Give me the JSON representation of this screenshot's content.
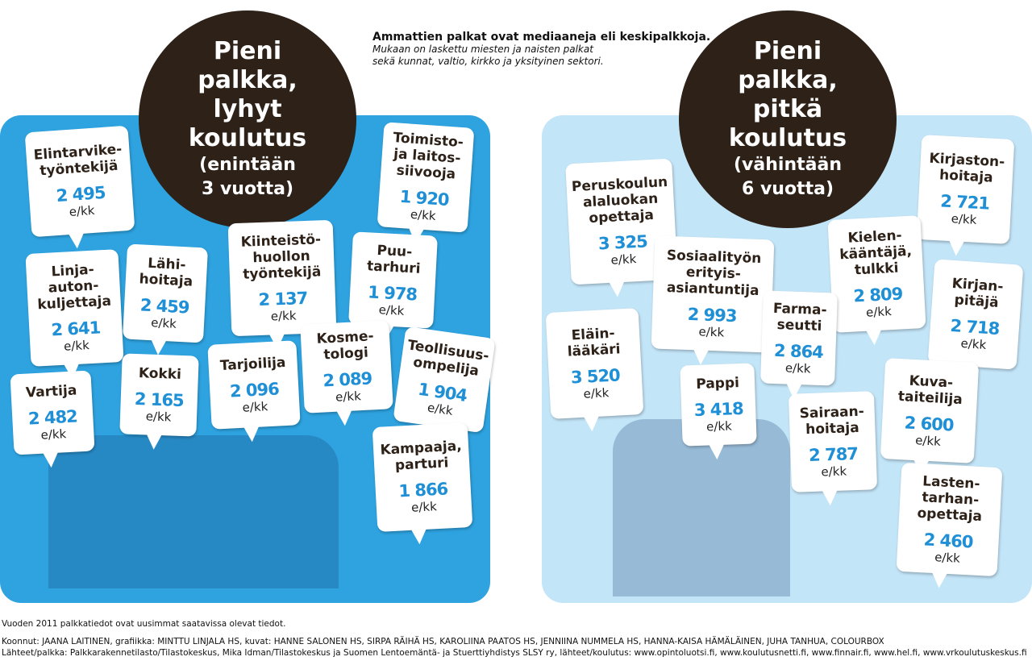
{
  "header": {
    "title": "Ammattien palkat ovat mediaaneja eli keskipalkkoja.",
    "note": [
      "Mukaan on laskettu miesten ja naisten palkat",
      "sekä kunnat, valtio, kirkko ja yksityinen sektori."
    ]
  },
  "left": {
    "heading": [
      "Pieni",
      "palkka,",
      "lyhyt",
      "koulutus"
    ],
    "subheading": [
      "(enintään",
      "3 vuotta)"
    ],
    "bubbles": [
      {
        "name": [
          "Elintarvike-",
          "työntekijä"
        ],
        "salary": "2 495",
        "unit": "e/kk"
      },
      {
        "name": [
          "Toimisto-",
          "ja laitos-",
          "siivooja"
        ],
        "salary": "1 920",
        "unit": "e/kk"
      },
      {
        "name": [
          "Linja-",
          "auton-",
          "kuljettaja"
        ],
        "salary": "2 641",
        "unit": "e/kk"
      },
      {
        "name": [
          "Lähi-",
          "hoitaja"
        ],
        "salary": "2 459",
        "unit": "e/kk"
      },
      {
        "name": [
          "Kiinteistö-",
          "huollon",
          "työntekijä"
        ],
        "salary": "2 137",
        "unit": "e/kk"
      },
      {
        "name": [
          "Puu-",
          "tarhuri"
        ],
        "salary": "1 978",
        "unit": "e/kk"
      },
      {
        "name": [
          "Kosme-",
          "tologi"
        ],
        "salary": "2 089",
        "unit": "e/kk"
      },
      {
        "name": [
          "Teollisuus-",
          "ompelija"
        ],
        "salary": "1 904",
        "unit": "e/kk"
      },
      {
        "name": [
          "Vartija"
        ],
        "salary": "2 482",
        "unit": "e/kk"
      },
      {
        "name": [
          "Kokki"
        ],
        "salary": "2 165",
        "unit": "e/kk"
      },
      {
        "name": [
          "Tarjoilija"
        ],
        "salary": "2 096",
        "unit": "e/kk"
      },
      {
        "name": [
          "Kampaaja,",
          "parturi"
        ],
        "salary": "1 866",
        "unit": "e/kk"
      }
    ]
  },
  "right": {
    "heading": [
      "Pieni",
      "palkka,",
      "pitkä",
      "koulutus"
    ],
    "subheading": [
      "(vähintään",
      "6 vuotta)"
    ],
    "bubbles": [
      {
        "name": [
          "Peruskoulun",
          "alaluokan",
          "opettaja"
        ],
        "salary": "3 325",
        "unit": "e/kk"
      },
      {
        "name": [
          "Kirjaston-",
          "hoitaja"
        ],
        "salary": "2 721",
        "unit": "e/kk"
      },
      {
        "name": [
          "Sosiaalityön",
          "erityis-",
          "asiantuntija"
        ],
        "salary": "2 993",
        "unit": "e/kk"
      },
      {
        "name": [
          "Kielen-",
          "kääntäjä,",
          "tulkki"
        ],
        "salary": "2 809",
        "unit": "e/kk"
      },
      {
        "name": [
          "Kirjan-",
          "pitäjä"
        ],
        "salary": "2 718",
        "unit": "e/kk"
      },
      {
        "name": [
          "Eläin-",
          "lääkäri"
        ],
        "salary": "3 520",
        "unit": "e/kk"
      },
      {
        "name": [
          "Farma-",
          "seutti"
        ],
        "salary": "2 864",
        "unit": "e/kk"
      },
      {
        "name": [
          "Pappi"
        ],
        "salary": "3 418",
        "unit": "e/kk"
      },
      {
        "name": [
          "Kuva-",
          "taiteilija"
        ],
        "salary": "2 600",
        "unit": "e/kk"
      },
      {
        "name": [
          "Sairaan-",
          "hoitaja"
        ],
        "salary": "2 787",
        "unit": "e/kk"
      },
      {
        "name": [
          "Lasten-",
          "tarhan-",
          "opettaja"
        ],
        "salary": "2 460",
        "unit": "e/kk"
      }
    ]
  },
  "footer": [
    "Vuoden 2011 palkkatiedot ovat uusimmat saatavissa olevat tiedot.",
    "Koonnut: JAANA LAITINEN, grafiikka: MINTTU LINJALA HS, kuvat: HANNE SALONEN HS, SIRPA RÄIHÄ HS, KAROLIINA PAATOS HS, JENNIINA NUMMELA HS, HANNA-KAISA HÄMÄLÄINEN, JUHA TANHUA, COLOURBOX",
    "Lähteet/palkka: Palkkarakennetilasto/Tilastokeskus, Mika Idman/Tilastokeskus ja Suomen Lentoemäntä- ja Stuerttiyhdistys SLSY ry, lähteet/koulutus: www.opintoluotsi.fi, www.koulutusnetti.fi, www.finnair.fi, www.hel.fi, www.vrkoulutuskeskus.fi"
  ]
}
